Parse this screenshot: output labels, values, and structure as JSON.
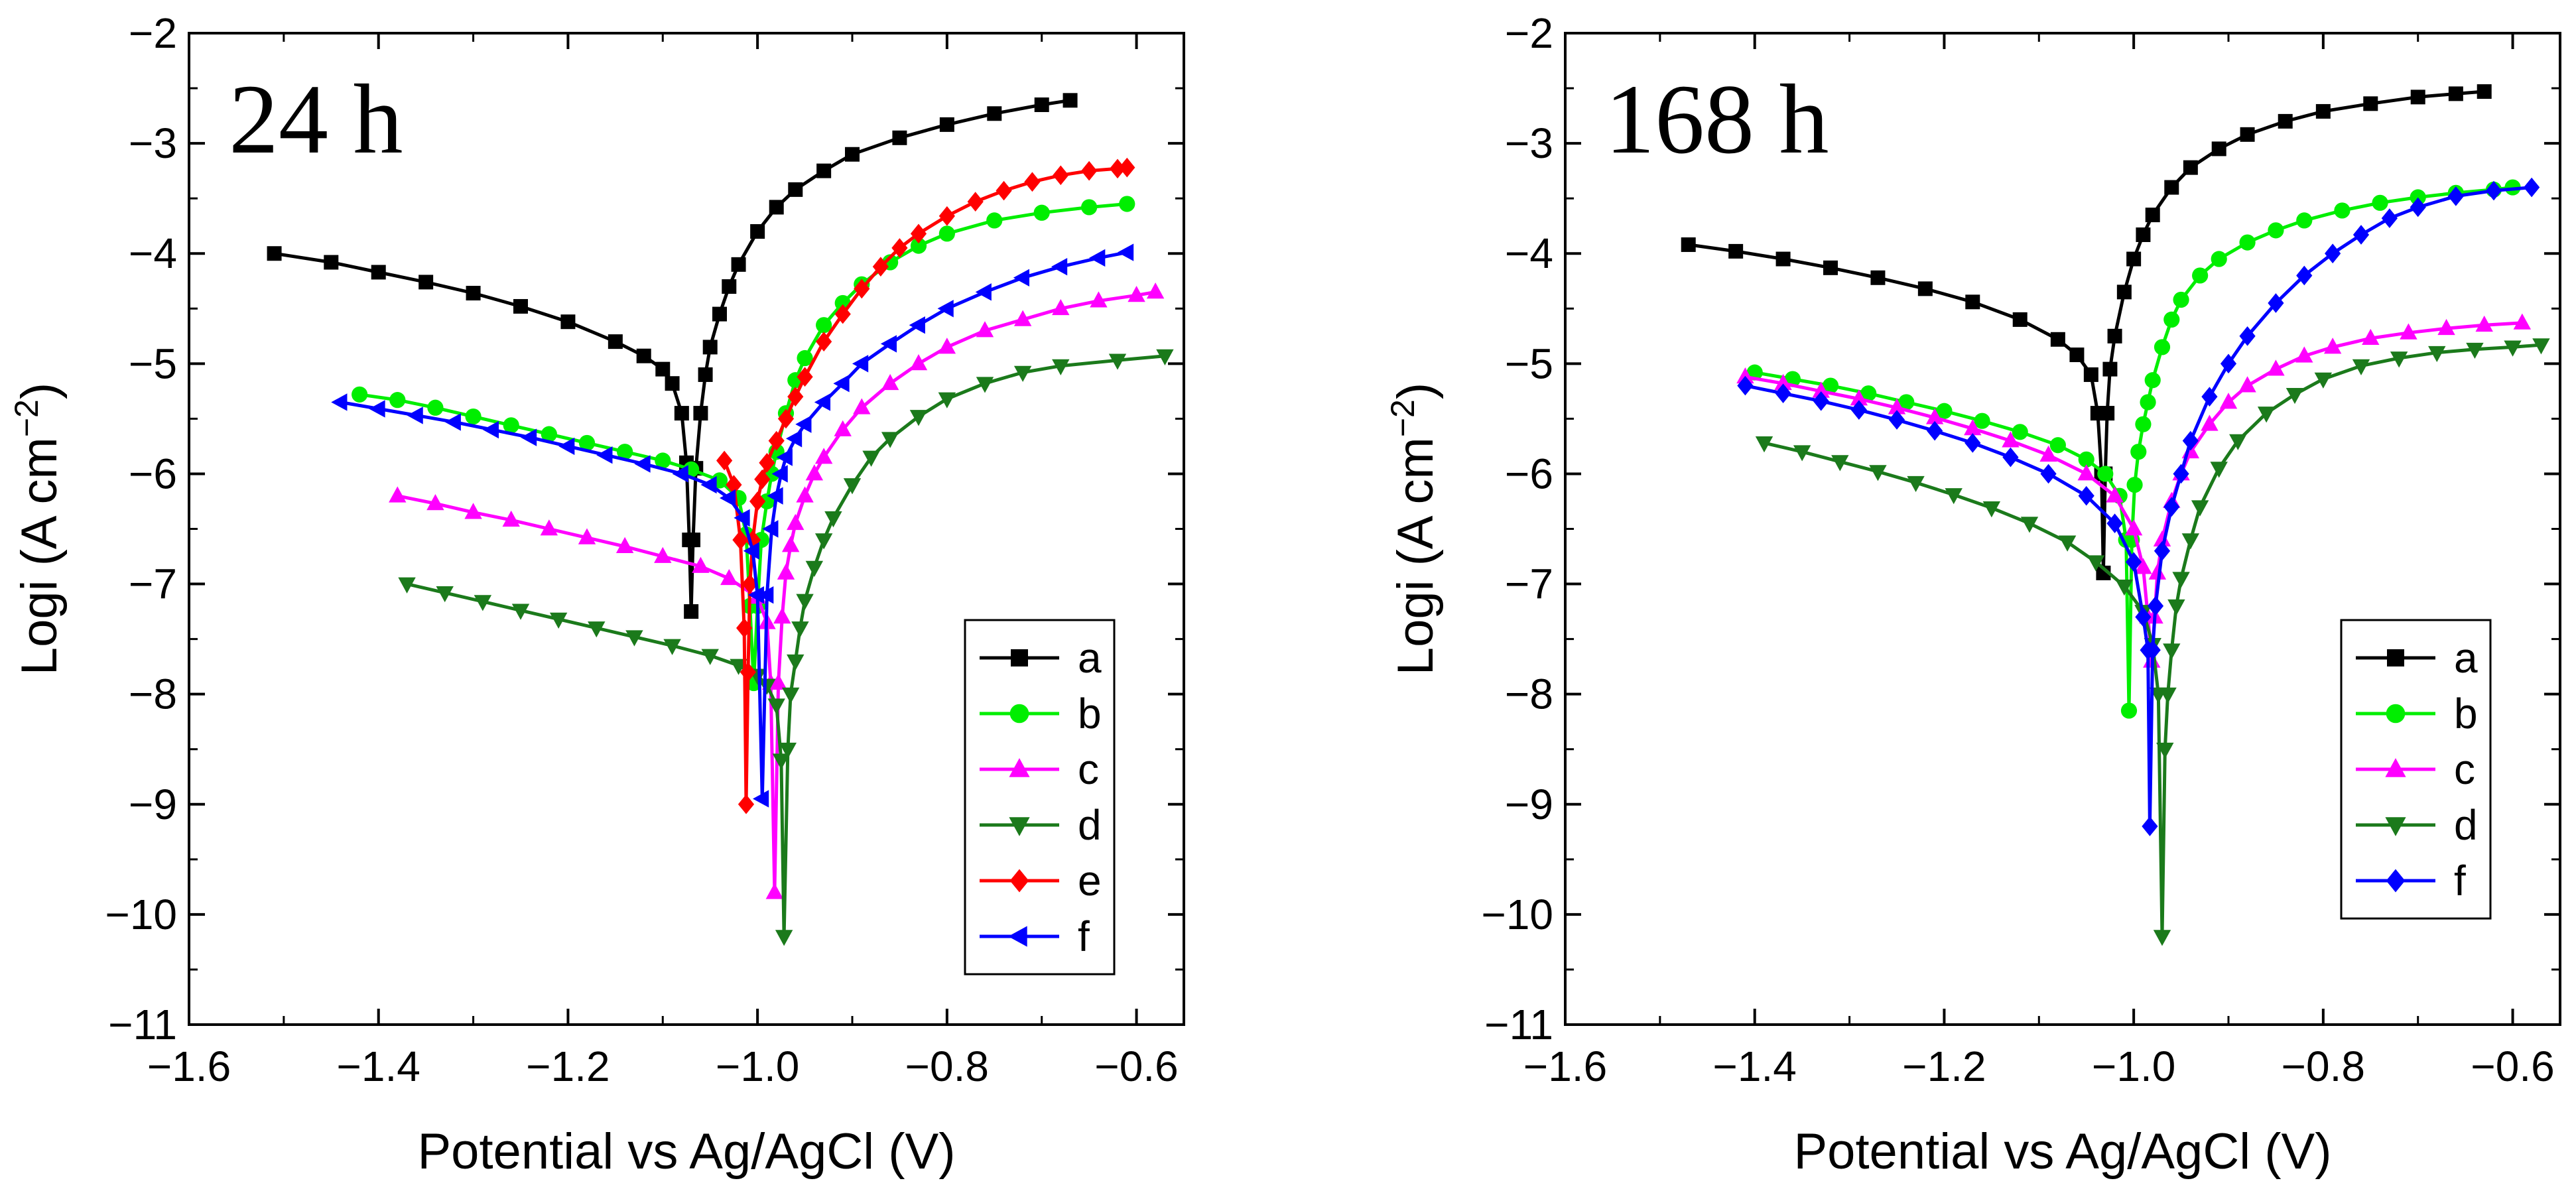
{
  "chart_data": [
    {
      "type": "line",
      "panel_label": "24 h",
      "xlabel": "Potential vs Ag/AgCl (V)",
      "ylabel_main": "Logi (A cm",
      "ylabel_sup": "−2",
      "ylabel_close": ")",
      "xlim": [
        -1.6,
        -0.55
      ],
      "ylim": [
        -11,
        -2
      ],
      "xticks": [
        -1.6,
        -1.4,
        -1.2,
        -1.0,
        -0.8,
        -0.6
      ],
      "xtick_labels": [
        "−1.6",
        "−1.4",
        "−1.2",
        "−1.0",
        "−0.8",
        "−0.6"
      ],
      "yticks": [
        -2,
        -3,
        -4,
        -5,
        -6,
        -7,
        -8,
        -9,
        -10,
        -11
      ],
      "ytick_labels": [
        "−2",
        "−3",
        "−4",
        "−5",
        "−6",
        "−7",
        "−8",
        "−9",
        "−10",
        "−11"
      ],
      "grid": false,
      "legend_position": "bottom-right",
      "series": [
        {
          "name": "a",
          "color": "#000000",
          "marker": "square",
          "x": [
            -1.51,
            -1.45,
            -1.4,
            -1.35,
            -1.3,
            -1.25,
            -1.2,
            -1.15,
            -1.12,
            -1.1,
            -1.09,
            -1.08,
            -1.075,
            -1.072,
            -1.07,
            -1.068,
            -1.065,
            -1.06,
            -1.055,
            -1.05,
            -1.04,
            -1.03,
            -1.02,
            -1.0,
            -0.98,
            -0.96,
            -0.93,
            -0.9,
            -0.85,
            -0.8,
            -0.75,
            -0.7,
            -0.67
          ],
          "y": [
            -4.0,
            -4.08,
            -4.17,
            -4.26,
            -4.36,
            -4.48,
            -4.62,
            -4.8,
            -4.93,
            -5.05,
            -5.18,
            -5.45,
            -5.9,
            -6.6,
            -7.25,
            -6.6,
            -5.95,
            -5.45,
            -5.1,
            -4.85,
            -4.55,
            -4.3,
            -4.1,
            -3.8,
            -3.58,
            -3.42,
            -3.25,
            -3.1,
            -2.95,
            -2.83,
            -2.73,
            -2.65,
            -2.61
          ]
        },
        {
          "name": "b",
          "color": "#00ee00",
          "marker": "circle",
          "x": [
            -1.42,
            -1.38,
            -1.34,
            -1.3,
            -1.26,
            -1.22,
            -1.18,
            -1.14,
            -1.1,
            -1.07,
            -1.04,
            -1.02,
            -1.012,
            -1.008,
            -1.004,
            -1.0,
            -0.996,
            -0.99,
            -0.985,
            -0.98,
            -0.97,
            -0.96,
            -0.95,
            -0.93,
            -0.91,
            -0.89,
            -0.86,
            -0.83,
            -0.8,
            -0.75,
            -0.7,
            -0.65,
            -0.61
          ],
          "y": [
            -5.28,
            -5.33,
            -5.4,
            -5.48,
            -5.56,
            -5.64,
            -5.72,
            -5.8,
            -5.88,
            -5.96,
            -6.06,
            -6.22,
            -6.55,
            -7.2,
            -7.9,
            -7.2,
            -6.6,
            -6.25,
            -6.0,
            -5.8,
            -5.45,
            -5.15,
            -4.95,
            -4.65,
            -4.45,
            -4.28,
            -4.08,
            -3.93,
            -3.82,
            -3.7,
            -3.63,
            -3.58,
            -3.55
          ]
        },
        {
          "name": "c",
          "color": "#ff00ff",
          "marker": "triangle-up",
          "x": [
            -1.38,
            -1.34,
            -1.3,
            -1.26,
            -1.22,
            -1.18,
            -1.14,
            -1.1,
            -1.06,
            -1.03,
            -1.0,
            -0.99,
            -0.986,
            -0.982,
            -0.978,
            -0.974,
            -0.97,
            -0.965,
            -0.96,
            -0.95,
            -0.94,
            -0.93,
            -0.91,
            -0.89,
            -0.86,
            -0.83,
            -0.8,
            -0.76,
            -0.72,
            -0.68,
            -0.64,
            -0.6,
            -0.58
          ],
          "y": [
            -6.2,
            -6.27,
            -6.35,
            -6.42,
            -6.5,
            -6.58,
            -6.66,
            -6.75,
            -6.84,
            -6.95,
            -7.12,
            -7.35,
            -7.9,
            -9.8,
            -7.9,
            -7.3,
            -6.9,
            -6.65,
            -6.45,
            -6.2,
            -6.0,
            -5.85,
            -5.6,
            -5.4,
            -5.18,
            -5.0,
            -4.85,
            -4.7,
            -4.6,
            -4.5,
            -4.43,
            -4.38,
            -4.35
          ]
        },
        {
          "name": "d",
          "color": "#1b7a1b",
          "marker": "triangle-down",
          "x": [
            -1.37,
            -1.33,
            -1.29,
            -1.25,
            -1.21,
            -1.17,
            -1.13,
            -1.09,
            -1.05,
            -1.02,
            -1.0,
            -0.99,
            -0.98,
            -0.975,
            -0.972,
            -0.968,
            -0.965,
            -0.96,
            -0.955,
            -0.95,
            -0.94,
            -0.93,
            -0.92,
            -0.9,
            -0.88,
            -0.86,
            -0.83,
            -0.8,
            -0.76,
            -0.72,
            -0.68,
            -0.62,
            -0.57
          ],
          "y": [
            -7.0,
            -7.08,
            -7.16,
            -7.24,
            -7.32,
            -7.4,
            -7.48,
            -7.56,
            -7.65,
            -7.74,
            -7.83,
            -7.92,
            -8.1,
            -8.6,
            -10.2,
            -8.5,
            -8.0,
            -7.7,
            -7.4,
            -7.15,
            -6.85,
            -6.6,
            -6.4,
            -6.1,
            -5.85,
            -5.68,
            -5.48,
            -5.32,
            -5.18,
            -5.08,
            -5.02,
            -4.97,
            -4.93
          ]
        },
        {
          "name": "e",
          "color": "#ff0000",
          "marker": "diamond",
          "x": [
            -1.035,
            -1.025,
            -1.018,
            -1.014,
            -1.012,
            -1.01,
            -1.008,
            -1.005,
            -1.0,
            -0.995,
            -0.99,
            -0.98,
            -0.97,
            -0.96,
            -0.95,
            -0.93,
            -0.91,
            -0.89,
            -0.87,
            -0.85,
            -0.83,
            -0.8,
            -0.77,
            -0.74,
            -0.71,
            -0.68,
            -0.65,
            -0.62,
            -0.61
          ],
          "y": [
            -5.88,
            -6.1,
            -6.6,
            -7.4,
            -9.0,
            -7.8,
            -7.0,
            -6.6,
            -6.25,
            -6.05,
            -5.9,
            -5.7,
            -5.5,
            -5.3,
            -5.12,
            -4.8,
            -4.55,
            -4.32,
            -4.12,
            -3.95,
            -3.82,
            -3.66,
            -3.53,
            -3.43,
            -3.35,
            -3.29,
            -3.25,
            -3.23,
            -3.22
          ]
        },
        {
          "name": "f",
          "color": "#0000ff",
          "marker": "triangle-left",
          "x": [
            -1.44,
            -1.4,
            -1.36,
            -1.32,
            -1.28,
            -1.24,
            -1.2,
            -1.16,
            -1.12,
            -1.08,
            -1.05,
            -1.03,
            -1.015,
            -1.005,
            -1.0,
            -0.995,
            -0.99,
            -0.985,
            -0.98,
            -0.975,
            -0.97,
            -0.96,
            -0.95,
            -0.93,
            -0.91,
            -0.89,
            -0.86,
            -0.83,
            -0.8,
            -0.76,
            -0.72,
            -0.68,
            -0.64,
            -0.61
          ],
          "y": [
            -5.35,
            -5.41,
            -5.47,
            -5.53,
            -5.6,
            -5.67,
            -5.75,
            -5.83,
            -5.91,
            -6.0,
            -6.1,
            -6.22,
            -6.4,
            -6.7,
            -7.1,
            -8.95,
            -7.1,
            -6.5,
            -6.2,
            -6.0,
            -5.85,
            -5.68,
            -5.55,
            -5.35,
            -5.18,
            -5.0,
            -4.82,
            -4.65,
            -4.5,
            -4.35,
            -4.22,
            -4.12,
            -4.04,
            -3.99
          ]
        }
      ],
      "legend": [
        {
          "label": "a",
          "color": "#000000",
          "marker": "square"
        },
        {
          "label": "b",
          "color": "#00ee00",
          "marker": "circle"
        },
        {
          "label": "c",
          "color": "#ff00ff",
          "marker": "triangle-up"
        },
        {
          "label": "d",
          "color": "#1b7a1b",
          "marker": "triangle-down"
        },
        {
          "label": "e",
          "color": "#ff0000",
          "marker": "diamond"
        },
        {
          "label": "f",
          "color": "#0000ff",
          "marker": "triangle-left"
        }
      ]
    },
    {
      "type": "line",
      "panel_label": "168 h",
      "xlabel": "Potential vs Ag/AgCl (V)",
      "ylabel_main": "Logi (A cm",
      "ylabel_sup": "−2",
      "ylabel_close": ")",
      "xlim": [
        -1.6,
        -0.55
      ],
      "ylim": [
        -11,
        -2
      ],
      "xticks": [
        -1.6,
        -1.4,
        -1.2,
        -1.0,
        -0.8,
        -0.6
      ],
      "xtick_labels": [
        "−1.6",
        "−1.4",
        "−1.2",
        "−1.0",
        "−0.8",
        "−0.6"
      ],
      "yticks": [
        -2,
        -3,
        -4,
        -5,
        -6,
        -7,
        -8,
        -9,
        -10,
        -11
      ],
      "ytick_labels": [
        "−2",
        "−3",
        "−4",
        "−5",
        "−6",
        "−7",
        "−8",
        "−9",
        "−10",
        "−11"
      ],
      "grid": false,
      "legend_position": "bottom-right",
      "series": [
        {
          "name": "a",
          "color": "#000000",
          "marker": "square",
          "x": [
            -1.47,
            -1.42,
            -1.37,
            -1.32,
            -1.27,
            -1.22,
            -1.17,
            -1.12,
            -1.08,
            -1.06,
            -1.045,
            -1.038,
            -1.034,
            -1.032,
            -1.03,
            -1.028,
            -1.025,
            -1.02,
            -1.01,
            -1.0,
            -0.99,
            -0.98,
            -0.96,
            -0.94,
            -0.91,
            -0.88,
            -0.84,
            -0.8,
            -0.75,
            -0.7,
            -0.66,
            -0.63
          ],
          "y": [
            -3.92,
            -3.98,
            -4.05,
            -4.13,
            -4.22,
            -4.32,
            -4.44,
            -4.6,
            -4.78,
            -4.92,
            -5.1,
            -5.45,
            -6.0,
            -6.9,
            -6.0,
            -5.45,
            -5.05,
            -4.75,
            -4.35,
            -4.05,
            -3.83,
            -3.65,
            -3.4,
            -3.22,
            -3.05,
            -2.92,
            -2.8,
            -2.71,
            -2.64,
            -2.58,
            -2.55,
            -2.53
          ]
        },
        {
          "name": "b",
          "color": "#00ee00",
          "marker": "circle",
          "x": [
            -1.4,
            -1.36,
            -1.32,
            -1.28,
            -1.24,
            -1.2,
            -1.16,
            -1.12,
            -1.08,
            -1.05,
            -1.03,
            -1.015,
            -1.008,
            -1.005,
            -1.002,
            -0.999,
            -0.995,
            -0.99,
            -0.985,
            -0.98,
            -0.97,
            -0.96,
            -0.95,
            -0.93,
            -0.91,
            -0.88,
            -0.85,
            -0.82,
            -0.78,
            -0.74,
            -0.7,
            -0.66,
            -0.62,
            -0.6
          ],
          "y": [
            -5.08,
            -5.14,
            -5.2,
            -5.27,
            -5.35,
            -5.43,
            -5.52,
            -5.62,
            -5.74,
            -5.87,
            -6.0,
            -6.2,
            -6.6,
            -8.15,
            -6.6,
            -6.1,
            -5.8,
            -5.55,
            -5.35,
            -5.15,
            -4.85,
            -4.6,
            -4.42,
            -4.2,
            -4.05,
            -3.9,
            -3.79,
            -3.7,
            -3.61,
            -3.54,
            -3.49,
            -3.45,
            -3.42,
            -3.4
          ]
        },
        {
          "name": "c",
          "color": "#ff00ff",
          "marker": "triangle-up",
          "x": [
            -1.41,
            -1.37,
            -1.33,
            -1.29,
            -1.25,
            -1.21,
            -1.17,
            -1.13,
            -1.09,
            -1.05,
            -1.02,
            -1.0,
            -0.99,
            -0.985,
            -0.981,
            -0.978,
            -0.975,
            -0.97,
            -0.96,
            -0.95,
            -0.94,
            -0.92,
            -0.9,
            -0.88,
            -0.85,
            -0.82,
            -0.79,
            -0.75,
            -0.71,
            -0.67,
            -0.63,
            -0.59
          ],
          "y": [
            -5.12,
            -5.18,
            -5.25,
            -5.32,
            -5.4,
            -5.49,
            -5.59,
            -5.7,
            -5.83,
            -6.0,
            -6.2,
            -6.5,
            -6.85,
            -7.3,
            -7.7,
            -7.3,
            -6.9,
            -6.6,
            -6.25,
            -6.0,
            -5.8,
            -5.55,
            -5.35,
            -5.2,
            -5.05,
            -4.93,
            -4.85,
            -4.77,
            -4.72,
            -4.68,
            -4.65,
            -4.63
          ]
        },
        {
          "name": "d",
          "color": "#1b7a1b",
          "marker": "triangle-down",
          "x": [
            -1.39,
            -1.35,
            -1.31,
            -1.27,
            -1.23,
            -1.19,
            -1.15,
            -1.11,
            -1.07,
            -1.04,
            -1.01,
            -0.99,
            -0.98,
            -0.974,
            -0.97,
            -0.967,
            -0.964,
            -0.96,
            -0.955,
            -0.95,
            -0.94,
            -0.93,
            -0.91,
            -0.89,
            -0.86,
            -0.83,
            -0.8,
            -0.76,
            -0.72,
            -0.68,
            -0.64,
            -0.6,
            -0.57
          ],
          "y": [
            -5.72,
            -5.8,
            -5.89,
            -5.98,
            -6.08,
            -6.19,
            -6.31,
            -6.45,
            -6.62,
            -6.8,
            -7.02,
            -7.25,
            -7.55,
            -8.0,
            -10.2,
            -8.5,
            -8.0,
            -7.6,
            -7.2,
            -6.95,
            -6.6,
            -6.3,
            -5.95,
            -5.7,
            -5.45,
            -5.28,
            -5.14,
            -5.02,
            -4.95,
            -4.9,
            -4.87,
            -4.85,
            -4.83
          ]
        },
        {
          "name": "f",
          "color": "#0000ff",
          "marker": "diamond",
          "x": [
            -1.41,
            -1.37,
            -1.33,
            -1.29,
            -1.25,
            -1.21,
            -1.17,
            -1.13,
            -1.09,
            -1.05,
            -1.02,
            -1.0,
            -0.99,
            -0.985,
            -0.983,
            -0.98,
            -0.977,
            -0.97,
            -0.96,
            -0.95,
            -0.94,
            -0.92,
            -0.9,
            -0.88,
            -0.85,
            -0.82,
            -0.79,
            -0.76,
            -0.73,
            -0.7,
            -0.66,
            -0.62,
            -0.58
          ],
          "y": [
            -5.2,
            -5.27,
            -5.34,
            -5.42,
            -5.51,
            -5.61,
            -5.72,
            -5.85,
            -6.0,
            -6.2,
            -6.45,
            -6.8,
            -7.3,
            -7.6,
            -9.2,
            -7.6,
            -7.2,
            -6.7,
            -6.3,
            -6.0,
            -5.7,
            -5.3,
            -5.0,
            -4.75,
            -4.45,
            -4.2,
            -4.0,
            -3.83,
            -3.68,
            -3.58,
            -3.48,
            -3.43,
            -3.4
          ]
        }
      ],
      "legend": [
        {
          "label": "a",
          "color": "#000000",
          "marker": "square"
        },
        {
          "label": "b",
          "color": "#00ee00",
          "marker": "circle"
        },
        {
          "label": "c",
          "color": "#ff00ff",
          "marker": "triangle-up"
        },
        {
          "label": "d",
          "color": "#1b7a1b",
          "marker": "triangle-down"
        },
        {
          "label": "f",
          "color": "#0000ff",
          "marker": "diamond"
        }
      ]
    }
  ]
}
